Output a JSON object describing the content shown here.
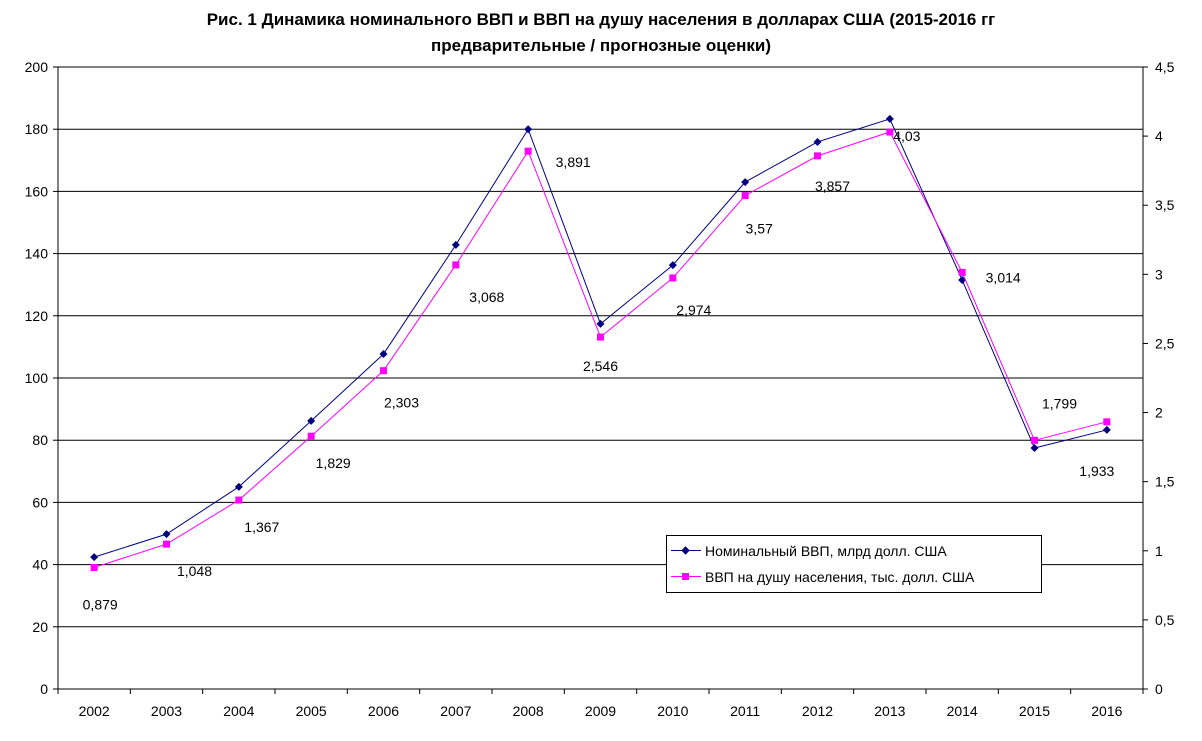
{
  "chart_data": {
    "type": "line",
    "title": "Рис. 1 Динамика номинального ВВП и ВВП на душу населения в долларах США (2015-2016 гг",
    "subtitle": "предварительные / прогнозные оценки)",
    "categories": [
      "2002",
      "2003",
      "2004",
      "2005",
      "2006",
      "2007",
      "2008",
      "2009",
      "2010",
      "2011",
      "2012",
      "2013",
      "2014",
      "2015",
      "2016"
    ],
    "y_left": {
      "min": 0,
      "max": 200,
      "ticks": [
        "0",
        "20",
        "40",
        "60",
        "80",
        "100",
        "120",
        "140",
        "160",
        "180",
        "200"
      ]
    },
    "y_right": {
      "min": 0,
      "max": 4.5,
      "ticks": [
        "0",
        "0,5",
        "1",
        "1,5",
        "2",
        "2,5",
        "3",
        "3,5",
        "4",
        "4,5"
      ]
    },
    "grid": "horizontal",
    "legend_position": "bottom-right",
    "series": [
      {
        "name": "Номинальный ВВП, млрд долл. США",
        "axis": "left",
        "color": "#000080",
        "marker": "diamond",
        "values": [
          42.4,
          49.8,
          65.0,
          86.2,
          107.7,
          142.8,
          180.0,
          117.4,
          136.3,
          163.0,
          175.9,
          183.3,
          131.5,
          77.5,
          83.3
        ]
      },
      {
        "name": "ВВП на душу населения, тыс. долл. США",
        "axis": "right",
        "color": "#FF00FF",
        "marker": "square",
        "values": [
          0.879,
          1.048,
          1.367,
          1.829,
          2.303,
          3.068,
          3.891,
          2.546,
          2.974,
          3.57,
          3.857,
          4.03,
          3.014,
          1.799,
          1.933
        ],
        "data_labels": [
          "0,879",
          "1,048",
          "1,367",
          "1,829",
          "2,303",
          "3,068",
          "3,891",
          "2,546",
          "2,974",
          "3,57",
          "3,857",
          "4,03",
          "3,014",
          "1,799",
          "1,933"
        ]
      }
    ]
  }
}
